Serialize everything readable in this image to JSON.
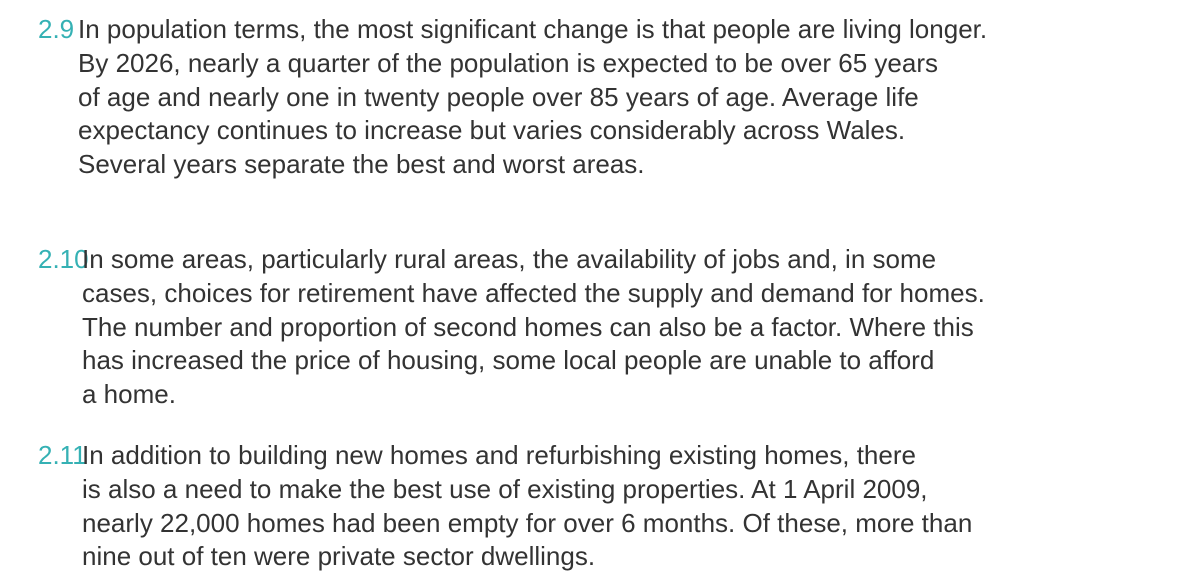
{
  "paragraphs": [
    {
      "number": "2.9",
      "lines": [
        "In population terms, the most significant change is that people are living longer.",
        "By 2026, nearly a quarter of the population is expected to be over 65 years",
        "of age and nearly one in twenty people over 85 years of age. Average life",
        "expectancy continues to increase but varies considerably across Wales.",
        "Several years separate the best and worst areas."
      ]
    },
    {
      "number": "2.10",
      "lines": [
        "In some areas, particularly rural areas, the availability of jobs and, in some",
        "cases, choices for retirement have affected the supply and demand for homes.",
        "The number and proportion of second homes can also be a factor. Where this",
        "has increased the price of housing, some local people are unable to afford",
        "a home."
      ]
    },
    {
      "number": "2.11",
      "lines": [
        "In addition to building new homes and refurbishing existing homes, there",
        "is also a need to make the best use of existing properties. At 1 April 2009,",
        "nearly 22,000 homes had been empty for over 6 months. Of these, more than",
        "nine out of ten were private sector dwellings."
      ]
    }
  ]
}
